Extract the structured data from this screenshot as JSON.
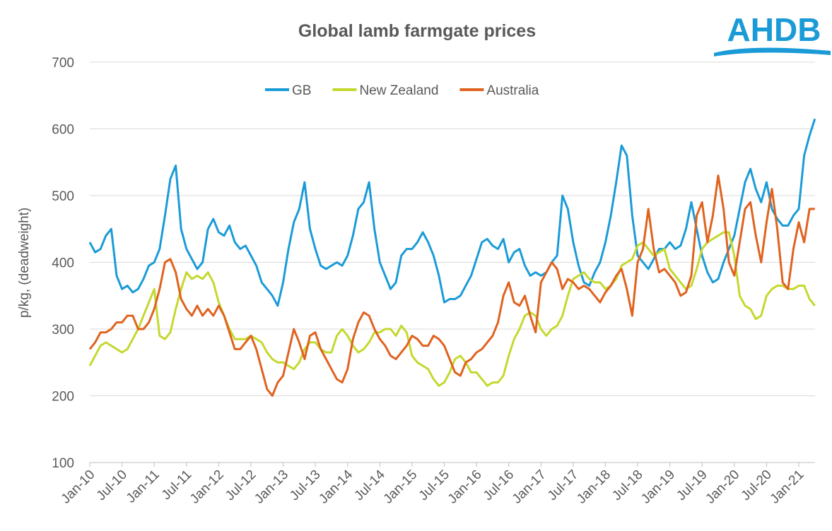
{
  "logo": "AHDB",
  "chart_data": {
    "type": "line",
    "title": "Global lamb farmgate prices",
    "y_label": "p/kg, (deadweight)",
    "categories": [
      "Jan-10",
      null,
      null,
      null,
      null,
      null,
      "Jul-10",
      null,
      null,
      null,
      null,
      null,
      "Jan-11",
      null,
      null,
      null,
      null,
      null,
      "Jul-11",
      null,
      null,
      null,
      null,
      null,
      "Jan-12",
      null,
      null,
      null,
      null,
      null,
      "Jul-12",
      null,
      null,
      null,
      null,
      null,
      "Jan-13",
      null,
      null,
      null,
      null,
      null,
      "Jul-13",
      null,
      null,
      null,
      null,
      null,
      "Jan-14",
      null,
      null,
      null,
      null,
      null,
      "Jul-14",
      null,
      null,
      null,
      null,
      null,
      "Jan-15",
      null,
      null,
      null,
      null,
      null,
      "Jul-15",
      null,
      null,
      null,
      null,
      null,
      "Jan-16",
      null,
      null,
      null,
      null,
      null,
      "Jul-16",
      null,
      null,
      null,
      null,
      null,
      "Jan-17",
      null,
      null,
      null,
      null,
      null,
      "Jul-17",
      null,
      null,
      null,
      null,
      null,
      "Jan-18",
      null,
      null,
      null,
      null,
      null,
      "Jul-18",
      null,
      null,
      null,
      null,
      null,
      "Jan-19",
      null,
      null,
      null,
      null,
      null,
      "Jul-19",
      null,
      null,
      null,
      null,
      null,
      "Jan-20",
      null,
      null,
      null,
      null,
      null,
      "Jul-20",
      null,
      null,
      null,
      null,
      null,
      "Jan-21",
      null,
      null,
      null
    ],
    "series": [
      {
        "name": "GB",
        "color": "#1a9bd7",
        "values": [
          430,
          415,
          420,
          440,
          450,
          380,
          360,
          365,
          355,
          360,
          375,
          395,
          400,
          420,
          470,
          525,
          545,
          450,
          420,
          405,
          390,
          400,
          450,
          465,
          445,
          440,
          455,
          430,
          420,
          425,
          410,
          395,
          370,
          360,
          350,
          335,
          370,
          420,
          460,
          480,
          520,
          450,
          420,
          395,
          390,
          395,
          400,
          395,
          410,
          440,
          480,
          490,
          520,
          450,
          400,
          380,
          360,
          370,
          410,
          420,
          420,
          430,
          445,
          430,
          410,
          380,
          340,
          345,
          345,
          350,
          365,
          380,
          405,
          430,
          435,
          425,
          420,
          435,
          400,
          415,
          420,
          395,
          380,
          385,
          380,
          385,
          400,
          410,
          500,
          480,
          430,
          395,
          370,
          365,
          385,
          400,
          430,
          470,
          520,
          575,
          560,
          470,
          410,
          400,
          390,
          405,
          420,
          420,
          430,
          420,
          425,
          450,
          490,
          450,
          410,
          385,
          370,
          375,
          400,
          420,
          440,
          480,
          520,
          540,
          510,
          490,
          520,
          480,
          465,
          455,
          455,
          470,
          480,
          560,
          590,
          615
        ]
      },
      {
        "name": "New Zealand",
        "color": "#c5d82e",
        "values": [
          245,
          260,
          275,
          280,
          275,
          270,
          265,
          270,
          285,
          300,
          320,
          340,
          360,
          290,
          285,
          295,
          330,
          360,
          385,
          375,
          380,
          375,
          385,
          370,
          340,
          320,
          300,
          285,
          285,
          285,
          290,
          285,
          280,
          265,
          255,
          250,
          250,
          245,
          240,
          250,
          270,
          280,
          280,
          270,
          265,
          265,
          290,
          300,
          290,
          275,
          265,
          270,
          280,
          295,
          295,
          300,
          300,
          290,
          305,
          295,
          260,
          250,
          245,
          240,
          225,
          215,
          220,
          235,
          255,
          260,
          250,
          235,
          235,
          225,
          215,
          220,
          220,
          230,
          260,
          285,
          300,
          320,
          325,
          320,
          300,
          290,
          300,
          305,
          320,
          350,
          375,
          380,
          385,
          375,
          370,
          370,
          360,
          365,
          375,
          395,
          400,
          405,
          425,
          430,
          420,
          410,
          415,
          420,
          390,
          380,
          370,
          360,
          365,
          390,
          420,
          430,
          435,
          440,
          445,
          445,
          410,
          350,
          335,
          330,
          315,
          320,
          350,
          360,
          365,
          365,
          360,
          360,
          365,
          365,
          345,
          335
        ]
      },
      {
        "name": "Australia",
        "color": "#e0621f",
        "values": [
          270,
          280,
          295,
          295,
          300,
          310,
          310,
          320,
          320,
          300,
          300,
          310,
          330,
          360,
          400,
          405,
          385,
          345,
          330,
          320,
          335,
          320,
          330,
          320,
          335,
          320,
          295,
          270,
          270,
          280,
          290,
          270,
          240,
          210,
          200,
          220,
          230,
          265,
          300,
          280,
          255,
          290,
          295,
          270,
          255,
          240,
          225,
          220,
          240,
          285,
          310,
          325,
          320,
          300,
          285,
          275,
          260,
          255,
          265,
          275,
          290,
          285,
          275,
          275,
          290,
          285,
          275,
          255,
          235,
          230,
          250,
          255,
          265,
          270,
          280,
          290,
          310,
          350,
          370,
          340,
          335,
          350,
          320,
          295,
          370,
          385,
          400,
          390,
          360,
          375,
          370,
          360,
          365,
          360,
          350,
          340,
          355,
          365,
          380,
          390,
          360,
          320,
          400,
          420,
          480,
          420,
          385,
          390,
          380,
          370,
          350,
          355,
          380,
          470,
          490,
          430,
          470,
          530,
          480,
          400,
          380,
          430,
          480,
          490,
          440,
          400,
          460,
          510,
          450,
          370,
          360,
          420,
          460,
          430,
          480,
          480
        ]
      }
    ],
    "ylim": [
      100,
      700
    ],
    "yticks": [
      100,
      200,
      300,
      400,
      500,
      600,
      700
    ],
    "grid": true,
    "legend": "top"
  }
}
